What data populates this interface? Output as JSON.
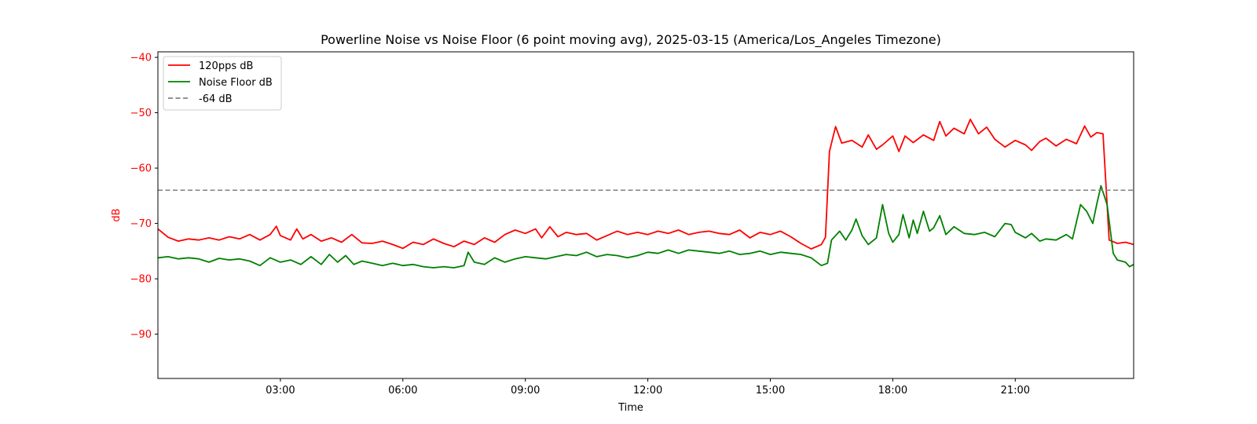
{
  "chart_data": {
    "type": "line",
    "title": "Powerline Noise vs Noise Floor (6 point moving avg), 2025-03-15 (America/Los_Angeles Timezone)",
    "xlabel": "Time",
    "ylabel": "dB",
    "xlim_hours": [
      0,
      23.9
    ],
    "ylim": [
      -98,
      -39
    ],
    "x_ticks": [
      {
        "hour": 3,
        "label": "03:00"
      },
      {
        "hour": 6,
        "label": "06:00"
      },
      {
        "hour": 9,
        "label": "09:00"
      },
      {
        "hour": 12,
        "label": "12:00"
      },
      {
        "hour": 15,
        "label": "15:00"
      },
      {
        "hour": 18,
        "label": "18:00"
      },
      {
        "hour": 21,
        "label": "21:00"
      }
    ],
    "y_ticks": [
      -40,
      -50,
      -60,
      -70,
      -80,
      -90
    ],
    "y_tick_labels": [
      "−40",
      "−50",
      "−60",
      "−70",
      "−80",
      "−90"
    ],
    "grid": false,
    "legend_position": "top-left",
    "series": [
      {
        "name": "120pps dB",
        "color": "#ff0000",
        "style": "solid",
        "points": [
          [
            0.0,
            -71.0
          ],
          [
            0.25,
            -72.5
          ],
          [
            0.5,
            -73.2
          ],
          [
            0.75,
            -72.8
          ],
          [
            1.0,
            -73.0
          ],
          [
            1.25,
            -72.6
          ],
          [
            1.5,
            -73.0
          ],
          [
            1.75,
            -72.4
          ],
          [
            2.0,
            -72.8
          ],
          [
            2.25,
            -72.0
          ],
          [
            2.5,
            -73.0
          ],
          [
            2.75,
            -72.0
          ],
          [
            2.9,
            -70.5
          ],
          [
            3.0,
            -72.2
          ],
          [
            3.25,
            -73.0
          ],
          [
            3.4,
            -71.0
          ],
          [
            3.55,
            -72.8
          ],
          [
            3.75,
            -72.0
          ],
          [
            4.0,
            -73.2
          ],
          [
            4.25,
            -72.6
          ],
          [
            4.5,
            -73.4
          ],
          [
            4.75,
            -72.0
          ],
          [
            5.0,
            -73.5
          ],
          [
            5.25,
            -73.6
          ],
          [
            5.5,
            -73.2
          ],
          [
            5.75,
            -73.8
          ],
          [
            6.0,
            -74.5
          ],
          [
            6.25,
            -73.4
          ],
          [
            6.5,
            -73.8
          ],
          [
            6.75,
            -72.8
          ],
          [
            7.0,
            -73.6
          ],
          [
            7.25,
            -74.2
          ],
          [
            7.5,
            -73.2
          ],
          [
            7.75,
            -73.8
          ],
          [
            8.0,
            -72.6
          ],
          [
            8.25,
            -73.4
          ],
          [
            8.5,
            -72.0
          ],
          [
            8.75,
            -71.2
          ],
          [
            9.0,
            -71.8
          ],
          [
            9.25,
            -71.0
          ],
          [
            9.4,
            -72.6
          ],
          [
            9.6,
            -70.6
          ],
          [
            9.8,
            -72.4
          ],
          [
            10.0,
            -71.6
          ],
          [
            10.25,
            -72.0
          ],
          [
            10.5,
            -71.8
          ],
          [
            10.75,
            -73.0
          ],
          [
            11.0,
            -72.2
          ],
          [
            11.25,
            -71.4
          ],
          [
            11.5,
            -72.0
          ],
          [
            11.75,
            -71.6
          ],
          [
            12.0,
            -72.0
          ],
          [
            12.25,
            -71.4
          ],
          [
            12.5,
            -71.8
          ],
          [
            12.75,
            -71.2
          ],
          [
            13.0,
            -72.0
          ],
          [
            13.25,
            -71.6
          ],
          [
            13.5,
            -71.4
          ],
          [
            13.75,
            -71.8
          ],
          [
            14.0,
            -72.0
          ],
          [
            14.25,
            -71.2
          ],
          [
            14.5,
            -72.6
          ],
          [
            14.75,
            -71.6
          ],
          [
            15.0,
            -72.0
          ],
          [
            15.25,
            -71.4
          ],
          [
            15.5,
            -72.4
          ],
          [
            15.75,
            -73.6
          ],
          [
            16.0,
            -74.6
          ],
          [
            16.25,
            -73.8
          ],
          [
            16.35,
            -72.5
          ],
          [
            16.45,
            -57.0
          ],
          [
            16.6,
            -52.5
          ],
          [
            16.75,
            -55.5
          ],
          [
            17.0,
            -55.0
          ],
          [
            17.25,
            -56.2
          ],
          [
            17.4,
            -54.0
          ],
          [
            17.6,
            -56.6
          ],
          [
            17.75,
            -55.8
          ],
          [
            18.0,
            -54.2
          ],
          [
            18.15,
            -57.0
          ],
          [
            18.3,
            -54.2
          ],
          [
            18.5,
            -55.4
          ],
          [
            18.75,
            -54.0
          ],
          [
            19.0,
            -55.0
          ],
          [
            19.15,
            -51.6
          ],
          [
            19.3,
            -54.2
          ],
          [
            19.5,
            -52.8
          ],
          [
            19.75,
            -53.8
          ],
          [
            19.9,
            -51.2
          ],
          [
            20.1,
            -53.8
          ],
          [
            20.3,
            -52.6
          ],
          [
            20.5,
            -54.8
          ],
          [
            20.75,
            -56.2
          ],
          [
            21.0,
            -55.0
          ],
          [
            21.25,
            -55.8
          ],
          [
            21.4,
            -56.8
          ],
          [
            21.6,
            -55.2
          ],
          [
            21.75,
            -54.6
          ],
          [
            22.0,
            -56.0
          ],
          [
            22.25,
            -54.8
          ],
          [
            22.5,
            -55.6
          ],
          [
            22.7,
            -52.4
          ],
          [
            22.85,
            -54.4
          ],
          [
            23.0,
            -53.6
          ],
          [
            23.15,
            -53.8
          ],
          [
            23.3,
            -73.0
          ],
          [
            23.5,
            -73.6
          ],
          [
            23.7,
            -73.4
          ],
          [
            23.9,
            -73.8
          ]
        ]
      },
      {
        "name": "Noise Floor dB",
        "color": "#008000",
        "style": "solid",
        "points": [
          [
            0.0,
            -76.2
          ],
          [
            0.25,
            -76.0
          ],
          [
            0.5,
            -76.4
          ],
          [
            0.75,
            -76.2
          ],
          [
            1.0,
            -76.4
          ],
          [
            1.25,
            -77.0
          ],
          [
            1.5,
            -76.3
          ],
          [
            1.75,
            -76.6
          ],
          [
            2.0,
            -76.4
          ],
          [
            2.25,
            -76.8
          ],
          [
            2.5,
            -77.6
          ],
          [
            2.75,
            -76.2
          ],
          [
            3.0,
            -77.0
          ],
          [
            3.25,
            -76.6
          ],
          [
            3.5,
            -77.4
          ],
          [
            3.75,
            -76.0
          ],
          [
            4.0,
            -77.4
          ],
          [
            4.2,
            -75.6
          ],
          [
            4.4,
            -77.0
          ],
          [
            4.6,
            -75.8
          ],
          [
            4.8,
            -77.4
          ],
          [
            5.0,
            -76.8
          ],
          [
            5.25,
            -77.2
          ],
          [
            5.5,
            -77.6
          ],
          [
            5.75,
            -77.2
          ],
          [
            6.0,
            -77.6
          ],
          [
            6.25,
            -77.4
          ],
          [
            6.5,
            -77.8
          ],
          [
            6.75,
            -78.0
          ],
          [
            7.0,
            -77.8
          ],
          [
            7.25,
            -78.0
          ],
          [
            7.5,
            -77.6
          ],
          [
            7.6,
            -75.2
          ],
          [
            7.75,
            -77.0
          ],
          [
            8.0,
            -77.4
          ],
          [
            8.25,
            -76.2
          ],
          [
            8.5,
            -77.0
          ],
          [
            8.75,
            -76.4
          ],
          [
            9.0,
            -76.0
          ],
          [
            9.25,
            -76.2
          ],
          [
            9.5,
            -76.4
          ],
          [
            9.75,
            -76.0
          ],
          [
            10.0,
            -75.6
          ],
          [
            10.25,
            -75.8
          ],
          [
            10.5,
            -75.2
          ],
          [
            10.75,
            -76.0
          ],
          [
            11.0,
            -75.6
          ],
          [
            11.25,
            -75.8
          ],
          [
            11.5,
            -76.2
          ],
          [
            11.75,
            -75.8
          ],
          [
            12.0,
            -75.2
          ],
          [
            12.25,
            -75.4
          ],
          [
            12.5,
            -74.8
          ],
          [
            12.75,
            -75.4
          ],
          [
            13.0,
            -74.8
          ],
          [
            13.25,
            -75.0
          ],
          [
            13.5,
            -75.2
          ],
          [
            13.75,
            -75.4
          ],
          [
            14.0,
            -75.0
          ],
          [
            14.25,
            -75.6
          ],
          [
            14.5,
            -75.4
          ],
          [
            14.75,
            -75.0
          ],
          [
            15.0,
            -75.6
          ],
          [
            15.25,
            -75.2
          ],
          [
            15.5,
            -75.4
          ],
          [
            15.75,
            -75.6
          ],
          [
            16.0,
            -76.2
          ],
          [
            16.25,
            -77.6
          ],
          [
            16.4,
            -77.2
          ],
          [
            16.5,
            -73.0
          ],
          [
            16.7,
            -71.4
          ],
          [
            16.85,
            -73.0
          ],
          [
            17.0,
            -71.2
          ],
          [
            17.1,
            -69.2
          ],
          [
            17.25,
            -72.2
          ],
          [
            17.4,
            -73.8
          ],
          [
            17.6,
            -72.6
          ],
          [
            17.75,
            -66.6
          ],
          [
            17.9,
            -71.8
          ],
          [
            18.0,
            -73.4
          ],
          [
            18.15,
            -72.0
          ],
          [
            18.25,
            -68.4
          ],
          [
            18.4,
            -72.6
          ],
          [
            18.5,
            -69.4
          ],
          [
            18.6,
            -71.8
          ],
          [
            18.75,
            -67.8
          ],
          [
            18.9,
            -71.4
          ],
          [
            19.0,
            -70.8
          ],
          [
            19.15,
            -68.6
          ],
          [
            19.3,
            -72.0
          ],
          [
            19.5,
            -70.6
          ],
          [
            19.75,
            -71.8
          ],
          [
            20.0,
            -72.0
          ],
          [
            20.25,
            -71.6
          ],
          [
            20.5,
            -72.4
          ],
          [
            20.75,
            -70.0
          ],
          [
            20.9,
            -70.2
          ],
          [
            21.0,
            -71.6
          ],
          [
            21.25,
            -72.6
          ],
          [
            21.4,
            -71.8
          ],
          [
            21.6,
            -73.2
          ],
          [
            21.75,
            -72.8
          ],
          [
            22.0,
            -73.0
          ],
          [
            22.25,
            -72.0
          ],
          [
            22.4,
            -72.8
          ],
          [
            22.6,
            -66.6
          ],
          [
            22.75,
            -67.8
          ],
          [
            22.9,
            -70.0
          ],
          [
            23.0,
            -66.4
          ],
          [
            23.1,
            -63.2
          ],
          [
            23.25,
            -66.6
          ],
          [
            23.4,
            -75.4
          ],
          [
            23.5,
            -76.6
          ],
          [
            23.7,
            -77.0
          ],
          [
            23.8,
            -77.8
          ],
          [
            23.9,
            -77.4
          ]
        ]
      },
      {
        "name": "-64 dB",
        "color": "#808080",
        "style": "dashed",
        "points": [
          [
            0.0,
            -64
          ],
          [
            23.9,
            -64
          ]
        ]
      }
    ]
  },
  "colors": {
    "ylabel_color": "#ff0000",
    "ytick_color": "#ff0000"
  }
}
